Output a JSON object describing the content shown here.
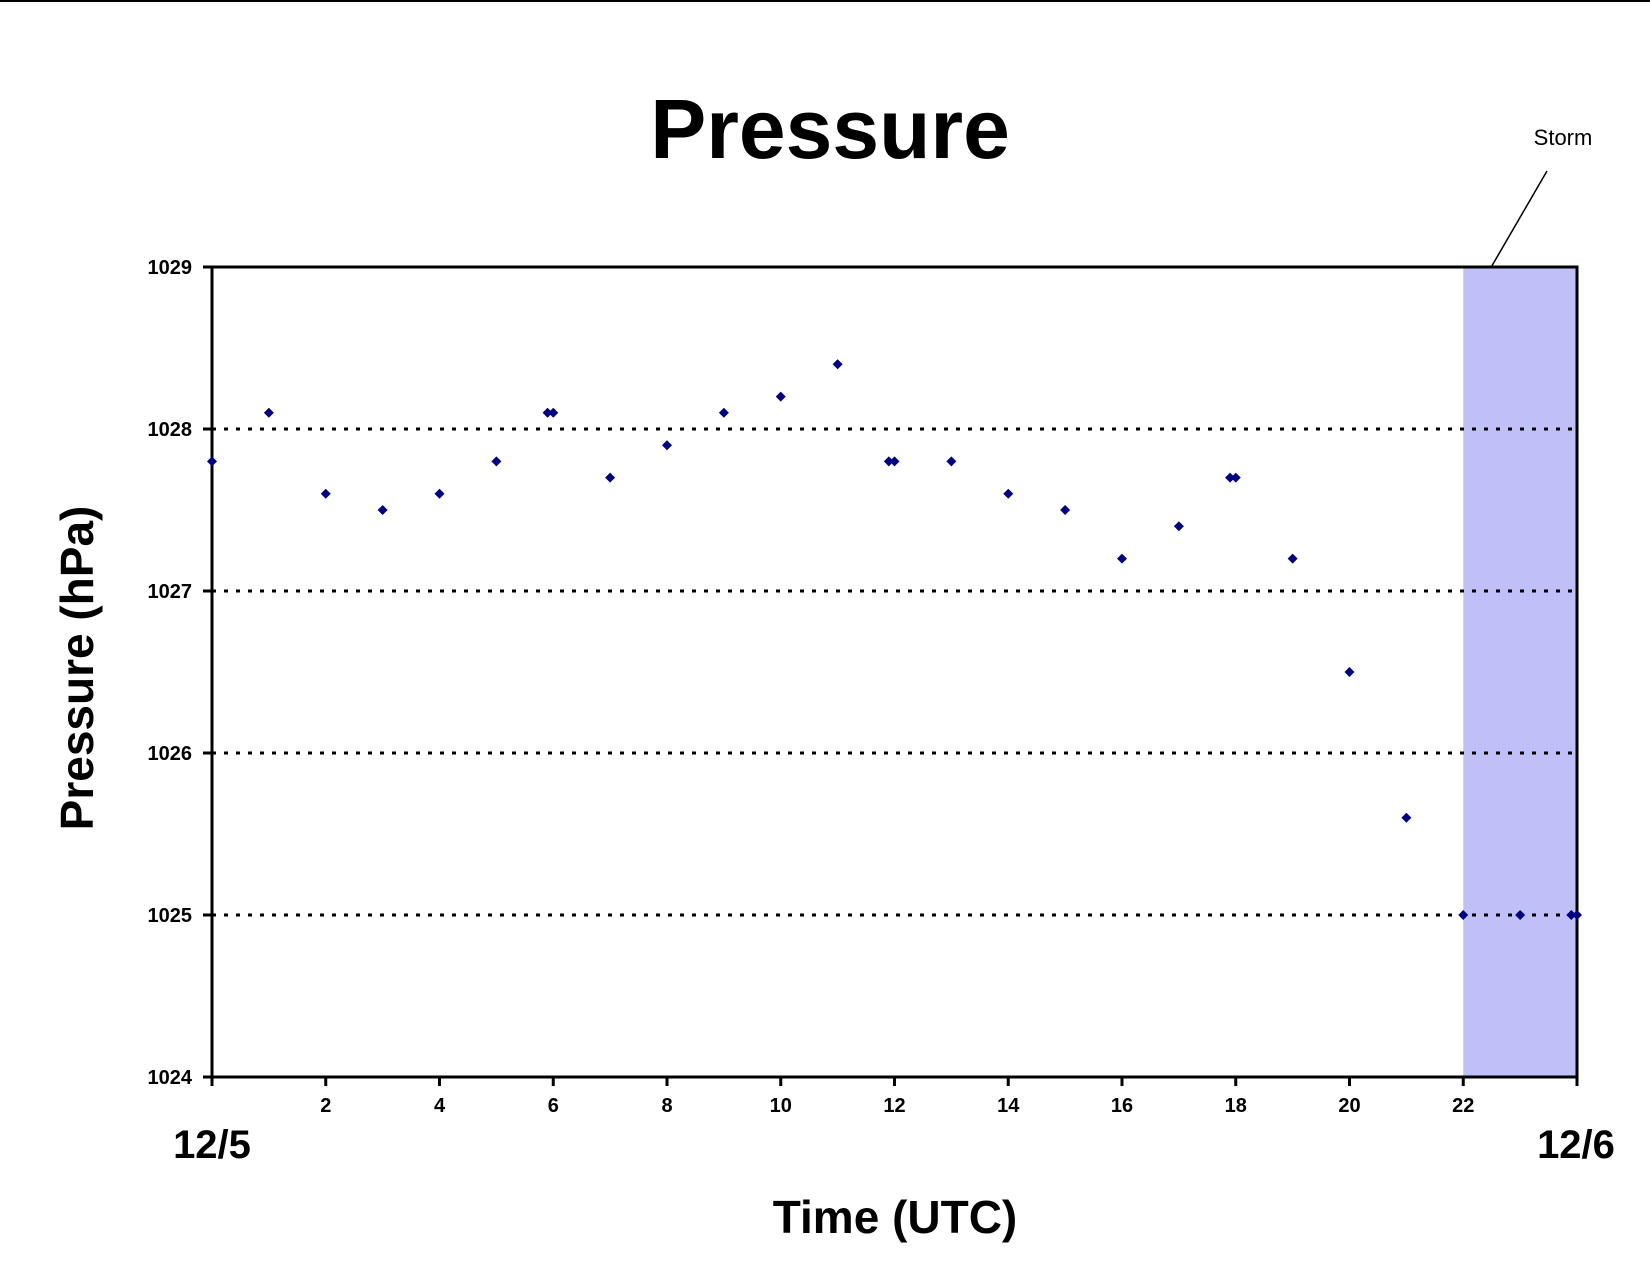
{
  "chart_data": {
    "type": "scatter",
    "title": "Pressure",
    "xlabel": "Time (UTC)",
    "ylabel": "Pressure (hPa)",
    "xlim": [
      0,
      24
    ],
    "ylim": [
      1024,
      1029
    ],
    "x_ticks": [
      2,
      4,
      6,
      8,
      10,
      12,
      14,
      16,
      18,
      20,
      22
    ],
    "y_ticks": [
      1024,
      1025,
      1026,
      1027,
      1028,
      1029
    ],
    "y_grid": true,
    "date_labels": {
      "start": "12/5",
      "end": "12/6"
    },
    "highlight": {
      "label": "Storm",
      "x_start": 22,
      "x_end": 24,
      "color": "#c0c0f8"
    },
    "marker_color": "#000080",
    "points": [
      {
        "x": 0,
        "y": 1027.8
      },
      {
        "x": 1,
        "y": 1028.1
      },
      {
        "x": 2,
        "y": 1027.6
      },
      {
        "x": 3,
        "y": 1027.5
      },
      {
        "x": 4,
        "y": 1027.6
      },
      {
        "x": 5,
        "y": 1027.8
      },
      {
        "x": 5.9,
        "y": 1028.1
      },
      {
        "x": 6,
        "y": 1028.1
      },
      {
        "x": 7,
        "y": 1027.7
      },
      {
        "x": 8,
        "y": 1027.9
      },
      {
        "x": 9,
        "y": 1028.1
      },
      {
        "x": 10,
        "y": 1028.2
      },
      {
        "x": 11,
        "y": 1028.4
      },
      {
        "x": 11.9,
        "y": 1027.8
      },
      {
        "x": 12,
        "y": 1027.8
      },
      {
        "x": 13,
        "y": 1027.8
      },
      {
        "x": 14,
        "y": 1027.6
      },
      {
        "x": 15,
        "y": 1027.5
      },
      {
        "x": 16,
        "y": 1027.2
      },
      {
        "x": 17,
        "y": 1027.4
      },
      {
        "x": 17.9,
        "y": 1027.7
      },
      {
        "x": 18,
        "y": 1027.7
      },
      {
        "x": 19,
        "y": 1027.2
      },
      {
        "x": 20,
        "y": 1026.5
      },
      {
        "x": 21,
        "y": 1025.6
      },
      {
        "x": 22,
        "y": 1025
      },
      {
        "x": 23,
        "y": 1025
      },
      {
        "x": 23.9,
        "y": 1025
      },
      {
        "x": 24,
        "y": 1025
      }
    ]
  }
}
